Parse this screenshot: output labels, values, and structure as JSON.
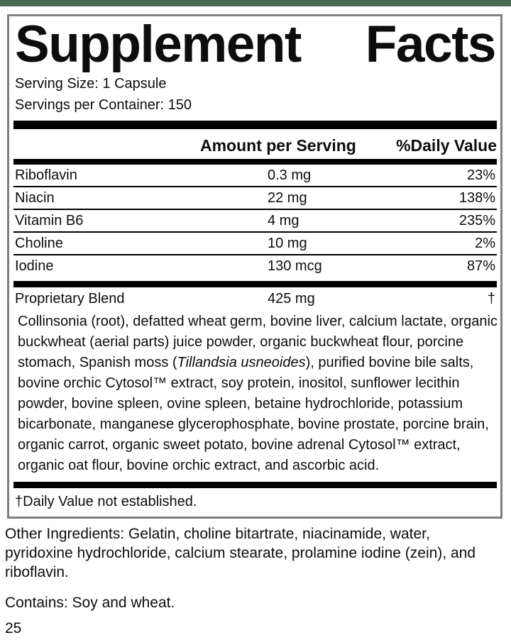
{
  "colors": {
    "top_bar": "#4a6b52",
    "border": "#7f7f7f",
    "bar": "#000000"
  },
  "title": {
    "left": "Supplement",
    "right": "Facts"
  },
  "serving": {
    "size": "Serving Size: 1 Capsule",
    "per_container": "Servings per Container: 150"
  },
  "table": {
    "headers": {
      "amount": "Amount per Serving",
      "daily_value": "%Daily Value"
    },
    "rows": [
      {
        "name": "Riboflavin",
        "amount": "0.3 mg",
        "daily_value": "23%"
      },
      {
        "name": "Niacin",
        "amount": "22 mg",
        "daily_value": "138%"
      },
      {
        "name": "Vitamin B6",
        "amount": "4 mg",
        "daily_value": "235%"
      },
      {
        "name": "Choline",
        "amount": "10 mg",
        "daily_value": "2%"
      },
      {
        "name": "Iodine",
        "amount": "130 mcg",
        "daily_value": "87%"
      }
    ],
    "proprietary_blend": {
      "name": "Proprietary Blend",
      "amount": "425 mg",
      "daily_value": "†",
      "description_lines": [
        {
          "text": "Collinsonia (root), defatted wheat germ, bovine liver, calcium lactate, organic"
        },
        {
          "text": "buckwheat (aerial parts) juice powder, organic buckwheat flour, porcine"
        },
        {
          "pre": "stomach, Spanish moss (",
          "italic": "Tillandsia usneoides",
          "post": "), purified bovine bile salts,"
        },
        {
          "text": "bovine orchic Cytosol™ extract, soy protein, inositol, sunflower lecithin"
        },
        {
          "text": "powder, bovine spleen, ovine spleen, betaine hydrochloride, potassium"
        },
        {
          "text": "bicarbonate, manganese glycerophosphate, bovine prostate, porcine brain,"
        },
        {
          "text": "organic carrot, organic sweet potato, bovine adrenal Cytosol™ extract,"
        },
        {
          "text": "organic oat flour, bovine orchic extract, and ascorbic acid."
        }
      ]
    },
    "footnote": "†Daily Value not established."
  },
  "other_ingredients": {
    "lines": [
      "Other Ingredients: Gelatin, choline bitartrate, niacinamide, water,",
      "pyridoxine hydrochloride, calcium stearate, prolamine iodine (zein), and",
      "riboflavin."
    ]
  },
  "contains": "Contains: Soy and wheat.",
  "page_number": "25"
}
